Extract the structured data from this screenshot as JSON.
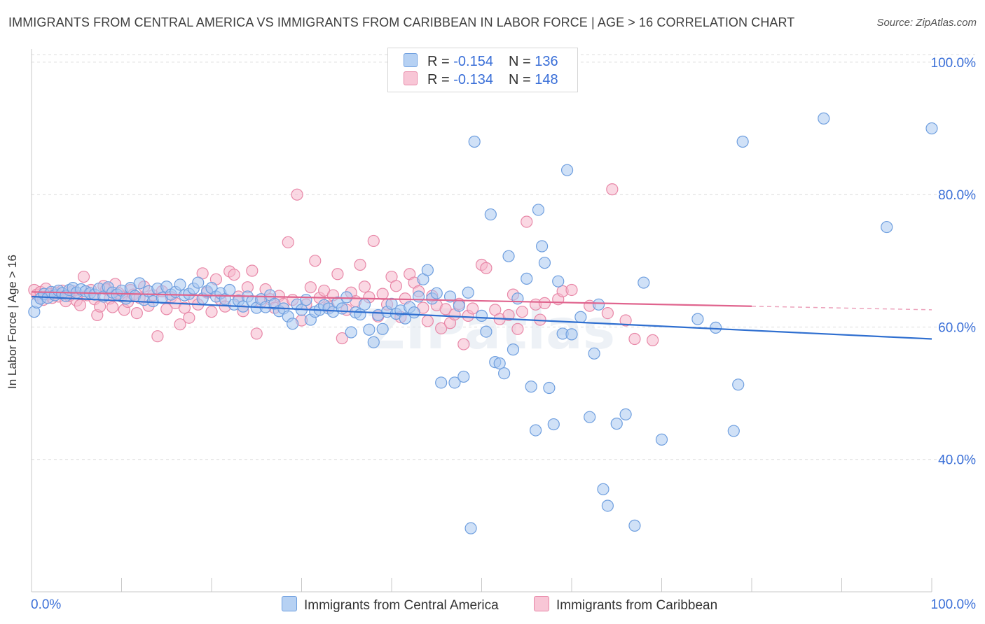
{
  "title": "IMMIGRANTS FROM CENTRAL AMERICA VS IMMIGRANTS FROM CARIBBEAN IN LABOR FORCE | AGE > 16 CORRELATION CHART",
  "source": "Source: ZipAtlas.com",
  "watermark": "ZIPatlas",
  "legend_top": {
    "rows": [
      {
        "r_label": "R = ",
        "r_value": "-0.154",
        "n_label": "N = ",
        "n_value": "136"
      },
      {
        "r_label": "R = ",
        "r_value": "-0.134",
        "n_label": "N = ",
        "n_value": "148"
      }
    ]
  },
  "colors": {
    "blue_fill": "#a9c8f0",
    "blue_stroke": "#6f9fdf",
    "blue_line": "#2f6fd0",
    "pink_fill": "#f5b8cc",
    "pink_stroke": "#e888a8",
    "pink_line": "#e0648e",
    "axis_label": "#3a6fd8",
    "grid": "#dcdcdc"
  },
  "chart_data": {
    "type": "scatter",
    "title": "IMMIGRANTS FROM CENTRAL AMERICA VS IMMIGRANTS FROM CARIBBEAN IN LABOR FORCE | AGE > 16 CORRELATION CHART",
    "xlabel": "",
    "ylabel": "In Labor Force | Age > 16",
    "xlim": [
      0,
      100
    ],
    "ylim": [
      20,
      102
    ],
    "x_tick_labels": [
      "0.0%",
      "100.0%"
    ],
    "y_ticks": [
      40,
      60,
      80,
      100
    ],
    "y_tick_labels": [
      "40.0%",
      "60.0%",
      "80.0%",
      "100.0%"
    ],
    "series": [
      {
        "name": "Immigrants from Central America",
        "color": "blue",
        "r": -0.154,
        "n": 136,
        "trend": {
          "x": [
            0,
            100
          ],
          "y": [
            64.6,
            58.2
          ],
          "solid_to": 100
        },
        "points": [
          [
            0.3,
            62.3
          ],
          [
            0.6,
            63.7
          ],
          [
            1.0,
            64.3
          ],
          [
            1.4,
            65.0
          ],
          [
            1.8,
            64.4
          ],
          [
            2.2,
            65.3
          ],
          [
            2.6,
            64.8
          ],
          [
            3.0,
            65.5
          ],
          [
            3.4,
            65.1
          ],
          [
            3.8,
            64.7
          ],
          [
            4.2,
            65.6
          ],
          [
            4.6,
            65.9
          ],
          [
            5.0,
            65.2
          ],
          [
            5.5,
            65.7
          ],
          [
            6.0,
            65.4
          ],
          [
            6.5,
            65.1
          ],
          [
            7.0,
            64.9
          ],
          [
            7.5,
            65.8
          ],
          [
            8.0,
            64.6
          ],
          [
            8.5,
            66.0
          ],
          [
            9.0,
            65.2
          ],
          [
            9.5,
            64.9
          ],
          [
            10.0,
            65.5
          ],
          [
            10.5,
            64.3
          ],
          [
            11.0,
            65.9
          ],
          [
            11.5,
            64.7
          ],
          [
            12.0,
            66.6
          ],
          [
            12.5,
            64.1
          ],
          [
            13.0,
            65.4
          ],
          [
            13.5,
            63.9
          ],
          [
            14.0,
            65.8
          ],
          [
            14.5,
            64.4
          ],
          [
            15.0,
            66.1
          ],
          [
            15.5,
            64.9
          ],
          [
            16.0,
            65.3
          ],
          [
            16.5,
            66.4
          ],
          [
            17.0,
            64.8
          ],
          [
            17.5,
            65.0
          ],
          [
            18.0,
            65.8
          ],
          [
            18.5,
            66.7
          ],
          [
            19.0,
            64.3
          ],
          [
            19.5,
            65.4
          ],
          [
            20.0,
            65.9
          ],
          [
            20.5,
            64.6
          ],
          [
            21.0,
            65.1
          ],
          [
            21.5,
            64.2
          ],
          [
            22.0,
            65.6
          ],
          [
            22.5,
            63.4
          ],
          [
            23.0,
            64.0
          ],
          [
            23.5,
            63.1
          ],
          [
            24.0,
            64.6
          ],
          [
            24.5,
            63.9
          ],
          [
            25.0,
            62.9
          ],
          [
            25.5,
            64.2
          ],
          [
            26.0,
            63.0
          ],
          [
            26.5,
            64.8
          ],
          [
            27.0,
            63.5
          ],
          [
            27.5,
            62.4
          ],
          [
            28.0,
            62.8
          ],
          [
            28.5,
            61.6
          ],
          [
            29.0,
            60.5
          ],
          [
            29.5,
            63.4
          ],
          [
            30.0,
            62.6
          ],
          [
            30.5,
            64.1
          ],
          [
            31.0,
            61.1
          ],
          [
            31.5,
            62.3
          ],
          [
            32.0,
            62.6
          ],
          [
            32.5,
            63.3
          ],
          [
            33.0,
            62.8
          ],
          [
            33.5,
            62.3
          ],
          [
            34.0,
            63.7
          ],
          [
            34.5,
            62.8
          ],
          [
            35.0,
            64.5
          ],
          [
            35.5,
            59.2
          ],
          [
            36.0,
            62.2
          ],
          [
            36.5,
            61.9
          ],
          [
            37.0,
            63.4
          ],
          [
            37.5,
            59.6
          ],
          [
            38.0,
            57.7
          ],
          [
            38.5,
            61.8
          ],
          [
            39.0,
            59.7
          ],
          [
            39.5,
            62.3
          ],
          [
            40.0,
            63.5
          ],
          [
            40.5,
            62.0
          ],
          [
            41.0,
            62.5
          ],
          [
            41.5,
            61.3
          ],
          [
            42.0,
            63.0
          ],
          [
            42.5,
            62.2
          ],
          [
            43.0,
            64.6
          ],
          [
            43.5,
            67.2
          ],
          [
            44.0,
            68.6
          ],
          [
            44.5,
            64.3
          ],
          [
            45.0,
            65.1
          ],
          [
            45.5,
            51.6
          ],
          [
            46.5,
            64.6
          ],
          [
            47.0,
            51.6
          ],
          [
            47.5,
            63.2
          ],
          [
            48.0,
            52.5
          ],
          [
            48.5,
            65.2
          ],
          [
            48.8,
            29.6
          ],
          [
            49.2,
            88.0
          ],
          [
            50.0,
            61.7
          ],
          [
            50.5,
            59.3
          ],
          [
            51.0,
            77.0
          ],
          [
            51.5,
            54.7
          ],
          [
            52.0,
            54.5
          ],
          [
            52.5,
            53.0
          ],
          [
            53.0,
            70.7
          ],
          [
            53.5,
            56.6
          ],
          [
            54.0,
            64.3
          ],
          [
            55.0,
            67.3
          ],
          [
            55.5,
            51.0
          ],
          [
            56.0,
            44.4
          ],
          [
            56.3,
            77.7
          ],
          [
            56.7,
            72.2
          ],
          [
            57.0,
            69.7
          ],
          [
            57.5,
            50.8
          ],
          [
            58.0,
            45.3
          ],
          [
            58.5,
            66.9
          ],
          [
            59.0,
            59.0
          ],
          [
            59.5,
            83.7
          ],
          [
            60.0,
            58.9
          ],
          [
            61.0,
            61.5
          ],
          [
            62.0,
            46.4
          ],
          [
            62.5,
            56.0
          ],
          [
            63.0,
            63.4
          ],
          [
            63.5,
            35.5
          ],
          [
            64.0,
            33.0
          ],
          [
            65.0,
            45.4
          ],
          [
            66.0,
            46.8
          ],
          [
            67.0,
            30.0
          ],
          [
            68.0,
            66.7
          ],
          [
            70.0,
            43.0
          ],
          [
            74.0,
            61.2
          ],
          [
            76.0,
            59.9
          ],
          [
            78.0,
            44.3
          ],
          [
            78.5,
            51.3
          ],
          [
            79.0,
            88.0
          ],
          [
            88.0,
            91.5
          ],
          [
            95.0,
            75.1
          ],
          [
            100.0,
            90.0
          ]
        ]
      },
      {
        "name": "Immigrants from Caribbean",
        "color": "pink",
        "r": -0.134,
        "n": 148,
        "trend": {
          "x": [
            0,
            100
          ],
          "y": [
            65.3,
            62.6
          ],
          "solid_to": 80
        },
        "points": [
          [
            0.3,
            65.6
          ],
          [
            0.6,
            64.9
          ],
          [
            1.0,
            65.3
          ],
          [
            1.3,
            64.1
          ],
          [
            1.6,
            65.8
          ],
          [
            2.0,
            65.0
          ],
          [
            2.3,
            64.4
          ],
          [
            2.7,
            65.2
          ],
          [
            3.0,
            64.6
          ],
          [
            3.4,
            65.5
          ],
          [
            3.8,
            63.9
          ],
          [
            4.2,
            64.7
          ],
          [
            4.6,
            65.4
          ],
          [
            5.0,
            64.0
          ],
          [
            5.4,
            63.3
          ],
          [
            5.8,
            67.6
          ],
          [
            6.2,
            64.8
          ],
          [
            6.6,
            65.6
          ],
          [
            7.0,
            64.2
          ],
          [
            7.3,
            61.8
          ],
          [
            7.6,
            63.1
          ],
          [
            8.0,
            66.2
          ],
          [
            8.3,
            65.7
          ],
          [
            8.7,
            64.3
          ],
          [
            9.0,
            63.0
          ],
          [
            9.3,
            66.5
          ],
          [
            9.7,
            65.1
          ],
          [
            10.0,
            64.6
          ],
          [
            10.3,
            62.6
          ],
          [
            10.7,
            63.8
          ],
          [
            11.0,
            65.6
          ],
          [
            11.3,
            64.9
          ],
          [
            11.7,
            62.1
          ],
          [
            12.0,
            64.4
          ],
          [
            12.5,
            66.1
          ],
          [
            13.0,
            63.2
          ],
          [
            13.5,
            64.8
          ],
          [
            14.0,
            58.6
          ],
          [
            14.5,
            65.4
          ],
          [
            15.0,
            62.7
          ],
          [
            15.5,
            64.5
          ],
          [
            16.0,
            63.6
          ],
          [
            16.5,
            60.4
          ],
          [
            17.0,
            62.9
          ],
          [
            17.5,
            61.4
          ],
          [
            18.0,
            64.2
          ],
          [
            18.5,
            63.4
          ],
          [
            19.0,
            68.1
          ],
          [
            19.5,
            65.2
          ],
          [
            20.0,
            62.3
          ],
          [
            20.5,
            67.2
          ],
          [
            21.0,
            64.1
          ],
          [
            21.5,
            63.1
          ],
          [
            22.0,
            68.4
          ],
          [
            22.5,
            67.9
          ],
          [
            23.0,
            64.6
          ],
          [
            23.5,
            62.4
          ],
          [
            24.0,
            66.0
          ],
          [
            24.5,
            68.5
          ],
          [
            25.0,
            59.0
          ],
          [
            25.5,
            63.8
          ],
          [
            26.0,
            65.7
          ],
          [
            26.5,
            64.2
          ],
          [
            27.0,
            62.9
          ],
          [
            27.5,
            64.7
          ],
          [
            28.0,
            63.5
          ],
          [
            28.5,
            72.8
          ],
          [
            29.0,
            64.1
          ],
          [
            29.5,
            80.0
          ],
          [
            30.0,
            61.0
          ],
          [
            30.5,
            63.4
          ],
          [
            31.0,
            66.0
          ],
          [
            31.5,
            70.0
          ],
          [
            32.0,
            64.4
          ],
          [
            32.5,
            65.5
          ],
          [
            33.0,
            63.1
          ],
          [
            33.5,
            64.8
          ],
          [
            34.0,
            68.0
          ],
          [
            34.5,
            58.3
          ],
          [
            35.0,
            62.6
          ],
          [
            35.5,
            65.2
          ],
          [
            36.0,
            63.9
          ],
          [
            36.5,
            69.4
          ],
          [
            37.0,
            66.1
          ],
          [
            37.5,
            64.5
          ],
          [
            38.0,
            73.0
          ],
          [
            38.5,
            61.6
          ],
          [
            39.0,
            65.0
          ],
          [
            39.5,
            63.4
          ],
          [
            40.0,
            67.6
          ],
          [
            40.5,
            66.2
          ],
          [
            41.0,
            61.5
          ],
          [
            41.5,
            64.3
          ],
          [
            42.0,
            68.0
          ],
          [
            42.5,
            66.7
          ],
          [
            43.0,
            65.4
          ],
          [
            43.5,
            62.9
          ],
          [
            44.0,
            60.9
          ],
          [
            44.5,
            64.7
          ],
          [
            45.0,
            63.3
          ],
          [
            45.5,
            59.8
          ],
          [
            46.0,
            62.7
          ],
          [
            46.5,
            60.6
          ],
          [
            47.0,
            61.9
          ],
          [
            47.5,
            63.5
          ],
          [
            48.0,
            57.4
          ],
          [
            48.5,
            61.7
          ],
          [
            49.0,
            62.8
          ],
          [
            50.0,
            69.4
          ],
          [
            50.5,
            68.9
          ],
          [
            51.5,
            62.6
          ],
          [
            52.0,
            61.2
          ],
          [
            53.0,
            61.8
          ],
          [
            53.5,
            64.9
          ],
          [
            54.0,
            59.7
          ],
          [
            54.5,
            62.3
          ],
          [
            55.0,
            75.9
          ],
          [
            56.0,
            63.4
          ],
          [
            56.5,
            61.1
          ],
          [
            57.0,
            63.6
          ],
          [
            58.5,
            64.2
          ],
          [
            59.0,
            65.4
          ],
          [
            60.0,
            65.6
          ],
          [
            62.0,
            63.2
          ],
          [
            64.0,
            62.1
          ],
          [
            66.0,
            61.0
          ],
          [
            67.0,
            58.2
          ],
          [
            69.0,
            58.0
          ],
          [
            64.5,
            80.8
          ]
        ]
      }
    ]
  },
  "bottom_legend": [
    {
      "label": "Immigrants from Central America",
      "color": "blue"
    },
    {
      "label": "Immigrants from Caribbean",
      "color": "pink"
    }
  ]
}
